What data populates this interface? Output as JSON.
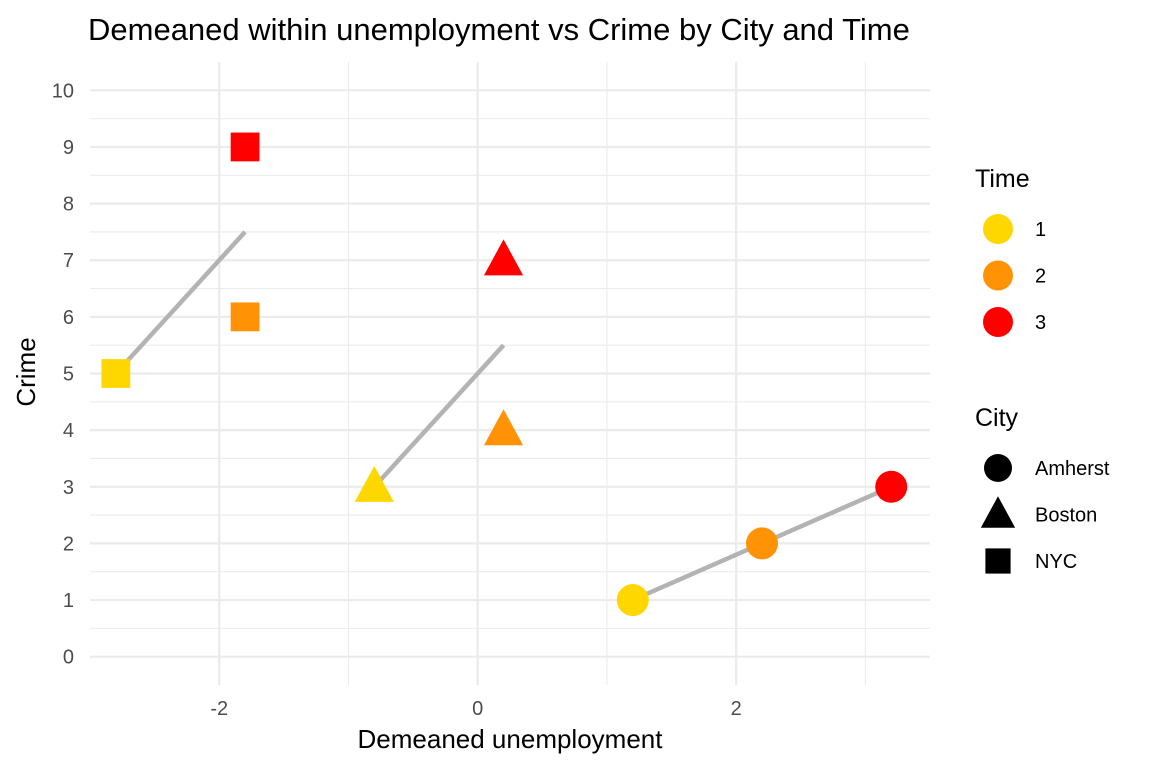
{
  "chart_data": {
    "type": "scatter",
    "title": "Demeaned within unemployment vs Crime by City and Time",
    "xlabel": "Demeaned unemployment",
    "ylabel": "Crime",
    "xlim": [
      -3.0,
      3.5
    ],
    "ylim": [
      -0.5,
      10.5
    ],
    "x_ticks": [
      -2,
      0,
      2
    ],
    "x_tick_labels": [
      "-2",
      "0",
      "2"
    ],
    "y_ticks": [
      0,
      1,
      2,
      3,
      4,
      5,
      6,
      7,
      8,
      9,
      10
    ],
    "y_tick_labels": [
      "0",
      "1",
      "2",
      "3",
      "4",
      "5",
      "6",
      "7",
      "8",
      "9",
      "10"
    ],
    "grid": true,
    "legend_position": "right",
    "legends": [
      {
        "title": "Time",
        "kind": "color",
        "items": [
          {
            "label": "1",
            "color": "#FFD700"
          },
          {
            "label": "2",
            "color": "#FF9305"
          },
          {
            "label": "3",
            "color": "#FF0000"
          }
        ]
      },
      {
        "title": "City",
        "kind": "shape",
        "items": [
          {
            "label": "Amherst",
            "shape": "circle"
          },
          {
            "label": "Boston",
            "shape": "triangle"
          },
          {
            "label": "NYC",
            "shape": "square"
          }
        ]
      }
    ],
    "points": [
      {
        "city": "Amherst",
        "time": "1",
        "x": 1.2,
        "y": 1
      },
      {
        "city": "Amherst",
        "time": "2",
        "x": 2.2,
        "y": 2
      },
      {
        "city": "Amherst",
        "time": "3",
        "x": 3.2,
        "y": 3
      },
      {
        "city": "Boston",
        "time": "1",
        "x": -0.8,
        "y": 3
      },
      {
        "city": "Boston",
        "time": "2",
        "x": 0.2,
        "y": 4
      },
      {
        "city": "Boston",
        "time": "3",
        "x": 0.2,
        "y": 7
      },
      {
        "city": "NYC",
        "time": "1",
        "x": -2.8,
        "y": 5
      },
      {
        "city": "NYC",
        "time": "2",
        "x": -1.8,
        "y": 6
      },
      {
        "city": "NYC",
        "time": "3",
        "x": -1.8,
        "y": 9
      }
    ],
    "fit_lines": [
      {
        "city": "Amherst",
        "x": [
          1.2,
          3.2
        ],
        "y": [
          1.0,
          3.0
        ],
        "color": "#B3B3B3"
      },
      {
        "city": "Boston",
        "x": [
          -0.8,
          0.2
        ],
        "y": [
          3.0,
          5.5
        ],
        "color": "#B3B3B3"
      },
      {
        "city": "NYC",
        "x": [
          -2.8,
          -1.8
        ],
        "y": [
          5.0,
          7.5
        ],
        "color": "#B3B3B3"
      }
    ]
  }
}
